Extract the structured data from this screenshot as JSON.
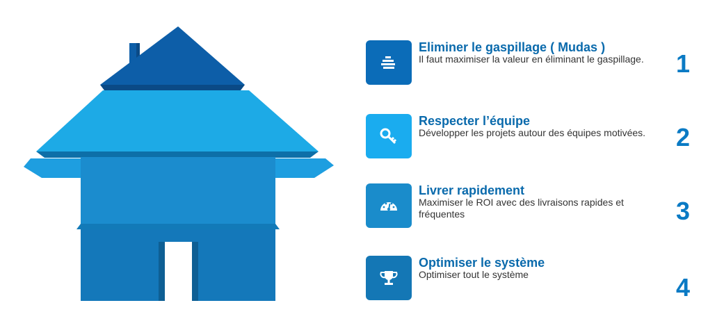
{
  "colors": {
    "roof_top": "#0d5ea8",
    "roof_top_shade": "#0a4a86",
    "roof_main": "#1daae6",
    "roof_main_shade": "#0d6fa8",
    "body_upper": "#1b8cce",
    "body_upper_shade": "#127ab8",
    "body_lower": "#1478ba",
    "body_lower_shade": "#0e5f94",
    "eave_light": "#1e9ee0",
    "title": "#0a6aac",
    "number": "#0a7ac4"
  },
  "items": [
    {
      "number": "1",
      "title": "Eliminer le gaspillage ( Mudas )",
      "description": "Il faut maximiser la valeur en éliminant le gaspillage.",
      "icon": "stacked-lines-icon",
      "icon_color": "#0b6cb8"
    },
    {
      "number": "2",
      "title": "Respecter l’équipe",
      "description": "Développer les projets autour des équipes motivées.",
      "icon": "key-icon",
      "icon_color": "#1aacef"
    },
    {
      "number": "3",
      "title": "Livrer rapidement",
      "description": "Maximiser le ROI avec des livraisons rapides et fréquentes",
      "icon": "speedometer-icon",
      "icon_color": "#1a8ccb"
    },
    {
      "number": "4",
      "title": "Optimiser le système",
      "description": "Optimiser tout le système",
      "icon": "trophy-icon",
      "icon_color": "#1477b5"
    }
  ]
}
